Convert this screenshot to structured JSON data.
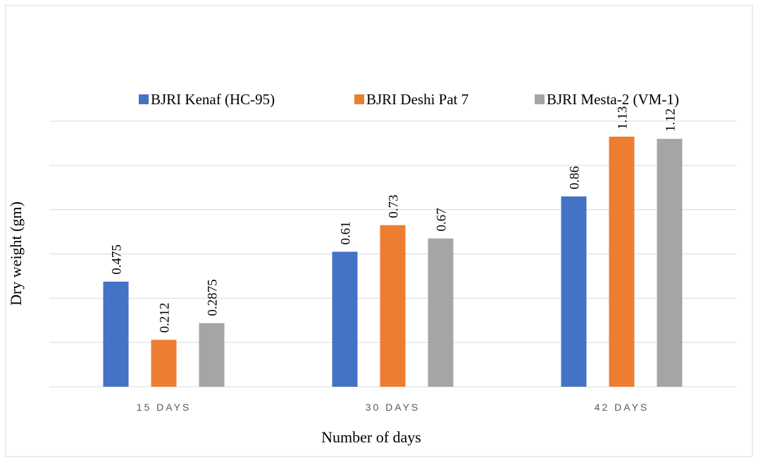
{
  "chart_data": {
    "type": "bar",
    "categories": [
      "15 DAYS",
      "30 DAYS",
      "42 DAYS"
    ],
    "series": [
      {
        "name": "BJRI Kenaf (HC-95)",
        "color": "#4472c4",
        "values": [
          0.475,
          0.61,
          0.86
        ]
      },
      {
        "name": "BJRI Deshi Pat 7",
        "color": "#ed7d31",
        "values": [
          0.212,
          0.73,
          1.13
        ]
      },
      {
        "name": "BJRI Mesta-2 (VM-1)",
        "color": "#a5a5a5",
        "values": [
          0.2875,
          0.67,
          1.12
        ]
      }
    ],
    "x_label": "Number of days",
    "y_label": "Dry weight (gm)",
    "ylim": [
      0,
      1.2
    ],
    "yticks": [
      0,
      0.2,
      0.4,
      0.6,
      0.8,
      1,
      1.2
    ],
    "grid": true,
    "legend": "top"
  }
}
